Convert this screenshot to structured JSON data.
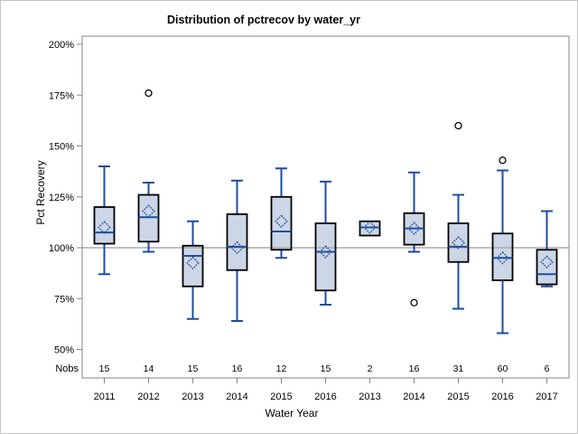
{
  "chart_data": {
    "type": "box",
    "title": "Distribution of pctrecov by water_yr",
    "xlabel": "Water Year",
    "ylabel": "Pct Recovery",
    "nobs_row_label": "Nobs",
    "y_ticks": [
      200,
      175,
      150,
      125,
      100,
      75,
      50
    ],
    "y_tick_suffix": "%",
    "ylim": [
      36,
      204
    ],
    "reference_line": 100,
    "grid": "off",
    "legend": "none",
    "categories": [
      "2011",
      "2012",
      "2013",
      "2014",
      "2015",
      "2016",
      "2013",
      "2014",
      "2015",
      "2016",
      "2017"
    ],
    "nobs": [
      15,
      14,
      15,
      16,
      12,
      15,
      2,
      16,
      31,
      60,
      6
    ],
    "boxes": [
      {
        "low": 87,
        "q1": 102,
        "median": 107.5,
        "q3": 120,
        "high": 140,
        "mean": 110,
        "outliers": []
      },
      {
        "low": 98,
        "q1": 103,
        "median": 115,
        "q3": 126,
        "high": 132,
        "mean": 118,
        "outliers": [
          176
        ]
      },
      {
        "low": 65,
        "q1": 81,
        "median": 96,
        "q3": 101,
        "high": 113,
        "mean": 92.5,
        "outliers": []
      },
      {
        "low": 64,
        "q1": 89,
        "median": 100.5,
        "q3": 116.5,
        "high": 133,
        "mean": 100,
        "outliers": []
      },
      {
        "low": 95,
        "q1": 99,
        "median": 108,
        "q3": 125,
        "high": 139,
        "mean": 113,
        "outliers": []
      },
      {
        "low": 72,
        "q1": 79,
        "median": 98,
        "q3": 112,
        "high": 132.5,
        "mean": 98,
        "outliers": []
      },
      {
        "low": 106,
        "q1": 106,
        "median": 110,
        "q3": 113,
        "high": 113,
        "mean": 110,
        "outliers": []
      },
      {
        "low": 98,
        "q1": 101.5,
        "median": 109.5,
        "q3": 117,
        "high": 137,
        "mean": 109.5,
        "outliers": [
          73
        ]
      },
      {
        "low": 70,
        "q1": 93,
        "median": 100.5,
        "q3": 112,
        "high": 126,
        "mean": 102.5,
        "outliers": [
          160
        ]
      },
      {
        "low": 58,
        "q1": 84,
        "median": 95,
        "q3": 107,
        "high": 138,
        "mean": 95,
        "outliers": [
          143
        ]
      },
      {
        "low": 81,
        "q1": 82,
        "median": 87,
        "q3": 99,
        "high": 118,
        "mean": 93,
        "outliers": []
      }
    ]
  },
  "colors": {
    "box_fill": "#ccd6e6",
    "box_border": "#000000",
    "line_blue": "#1e4ca1",
    "frame_gray": "#868686",
    "reference_line_gray": "#ababab",
    "outlier_black": "#000000",
    "background": "#ffffff"
  }
}
